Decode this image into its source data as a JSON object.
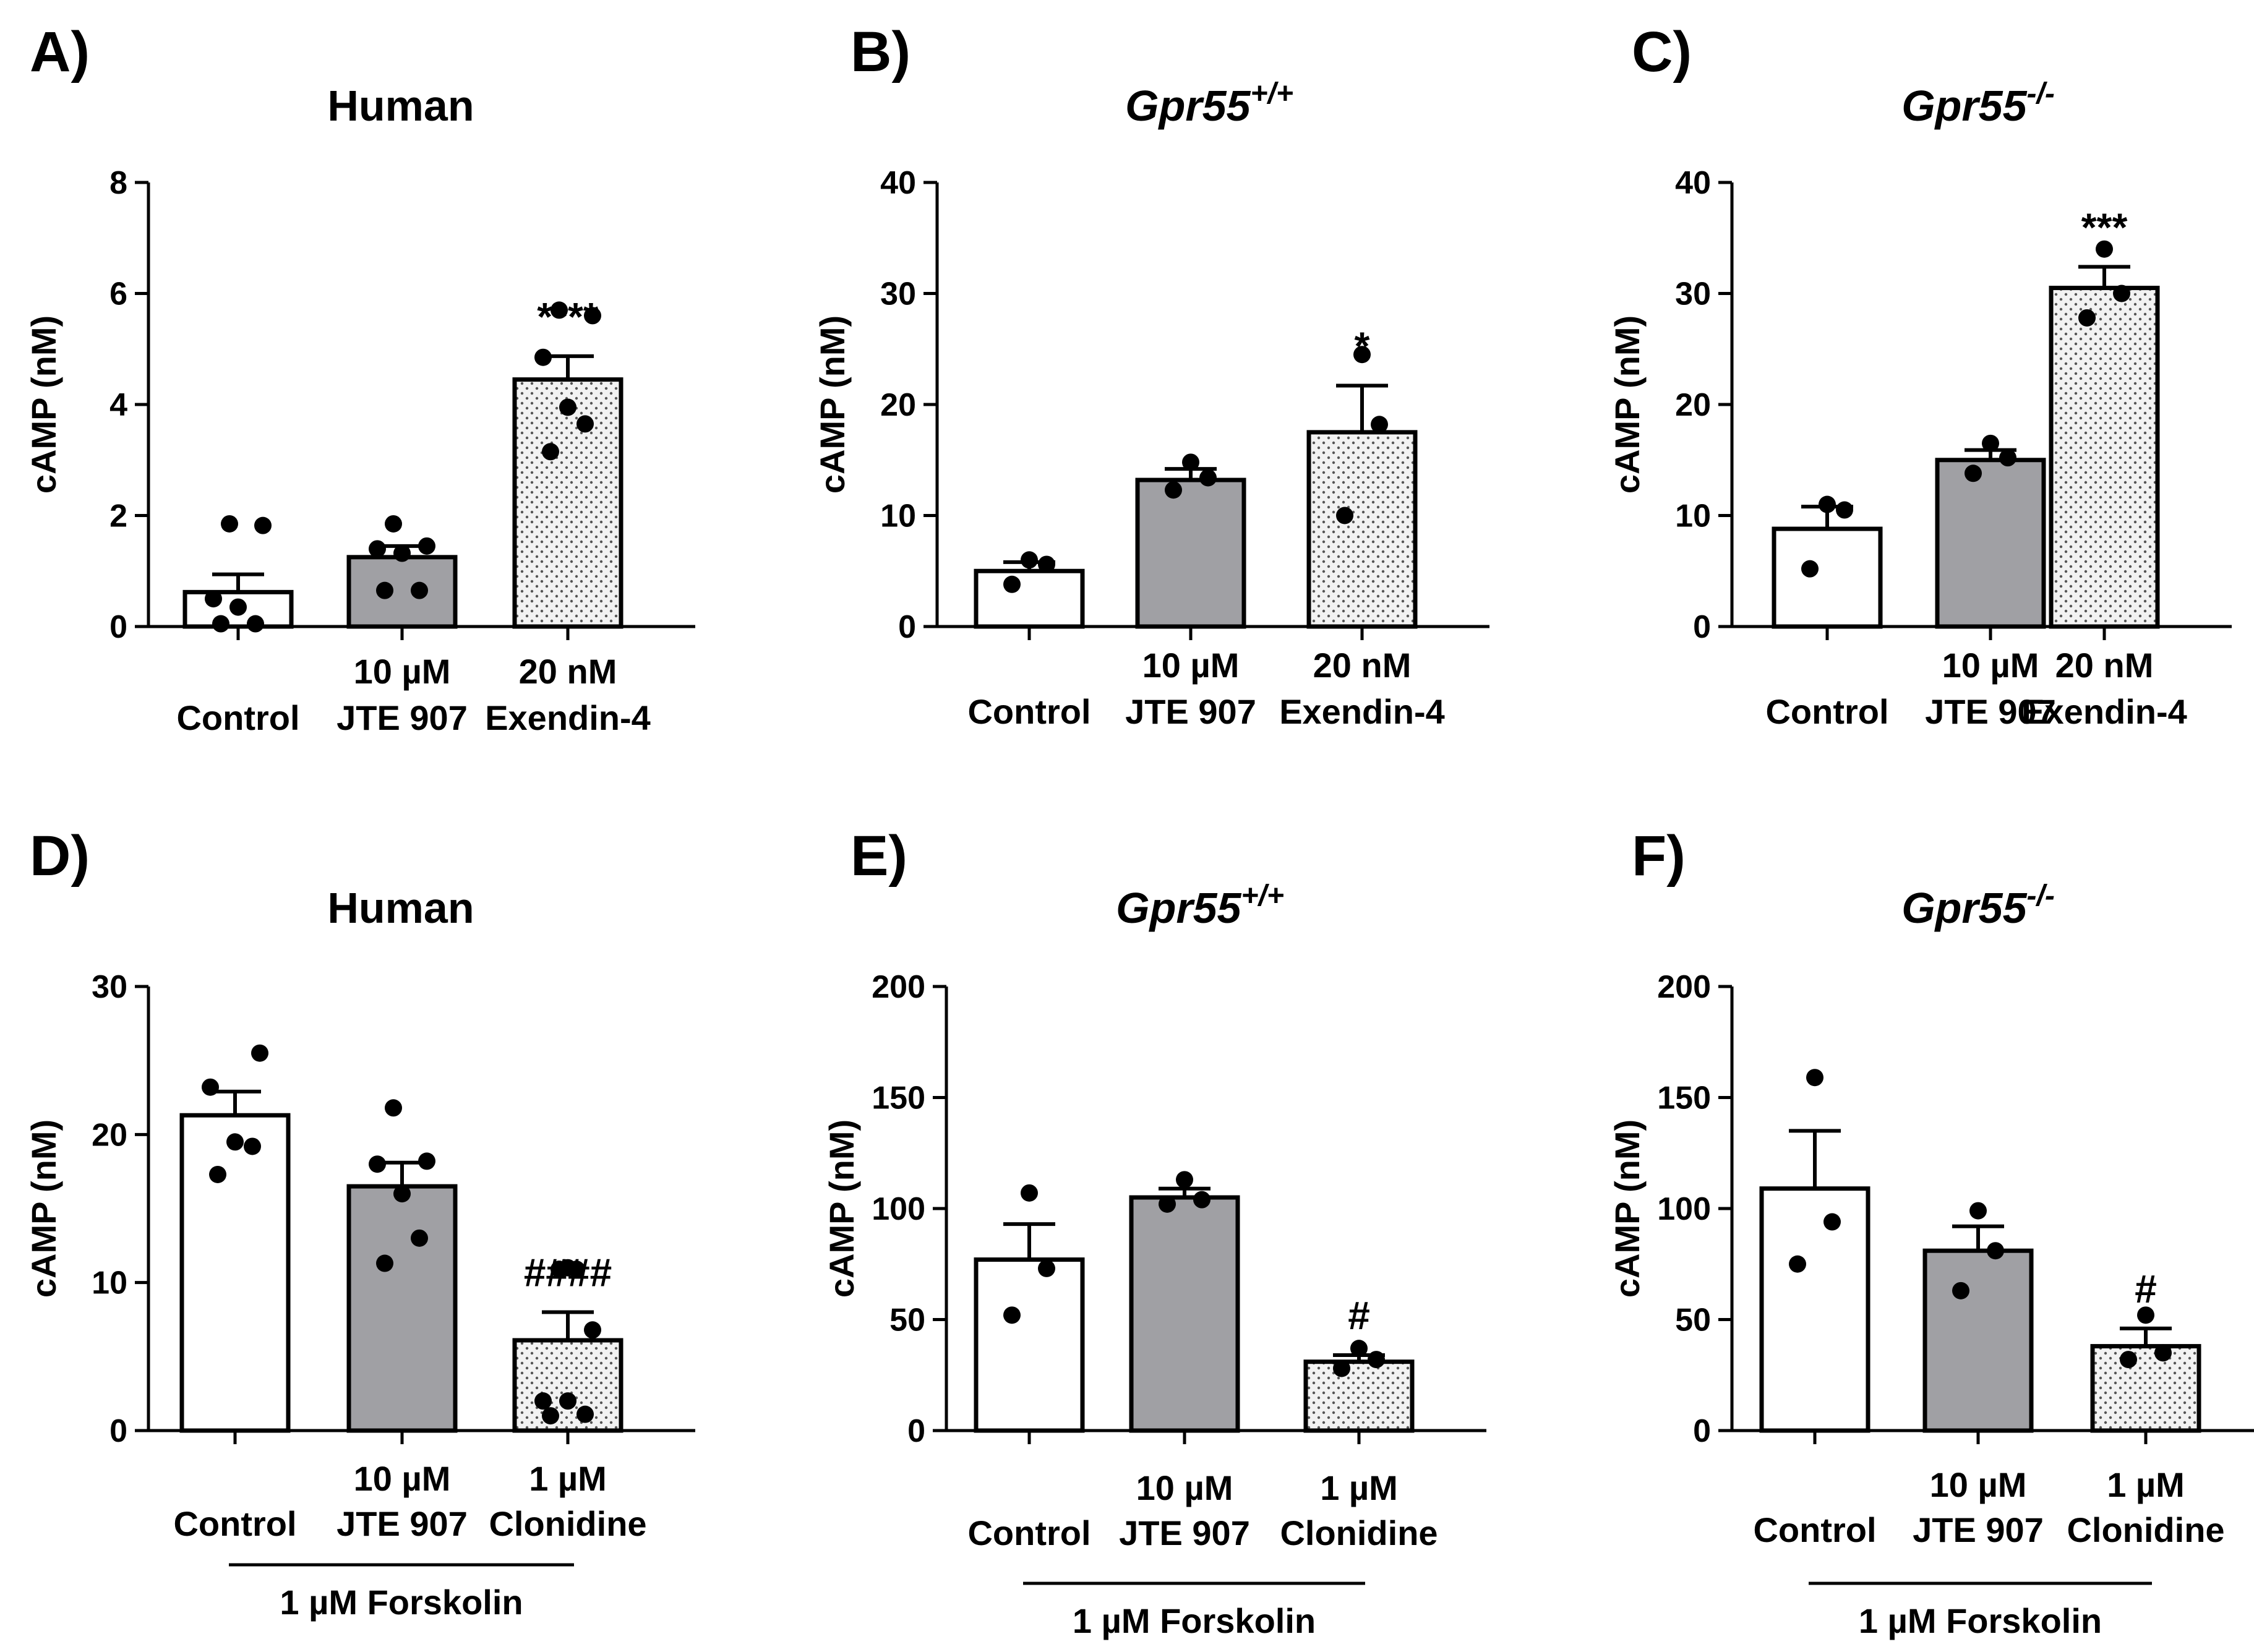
{
  "colors": {
    "control": "#ffffff",
    "jte": "#a0a0a4",
    "treat": "#f2f2f2",
    "stroke": "#000000",
    "stipple": "#555555"
  },
  "chart_data": [
    {
      "type": "bar",
      "panel": "A)",
      "title": "Human",
      "title_italic": false,
      "title_sup": "",
      "ylabel": "cAMP (nM)",
      "ylim": [
        0,
        8
      ],
      "yticks": [
        0,
        2,
        4,
        6,
        8
      ],
      "categories": [
        [
          "Control"
        ],
        [
          "10 µM",
          "JTE 907"
        ],
        [
          "20 nM",
          "Exendin-4"
        ]
      ],
      "values": [
        0.62,
        1.25,
        4.45
      ],
      "sem": [
        0.32,
        0.2,
        0.42
      ],
      "points": [
        [
          0.05,
          0.05,
          0.35,
          0.5,
          1.82,
          1.85
        ],
        [
          0.65,
          0.65,
          1.32,
          1.4,
          1.45,
          1.85
        ],
        [
          3.15,
          3.65,
          3.95,
          4.85,
          5.6,
          5.7
        ]
      ],
      "annotations": [
        "",
        "",
        "****"
      ],
      "bracket_label": ""
    },
    {
      "type": "bar",
      "panel": "B)",
      "title": "Gpr55",
      "title_italic": true,
      "title_sup": "+/+",
      "ylabel": "cAMP (nM)",
      "ylim": [
        0,
        40
      ],
      "yticks": [
        0,
        10,
        20,
        30,
        40
      ],
      "categories": [
        [
          "Control"
        ],
        [
          "10 µM",
          "JTE 907"
        ],
        [
          "20 nM",
          "Exendin-4"
        ]
      ],
      "values": [
        5.0,
        13.2,
        17.5
      ],
      "sem": [
        0.8,
        1.0,
        4.2
      ],
      "points": [
        [
          3.8,
          5.6,
          6.0
        ],
        [
          12.3,
          13.4,
          14.8
        ],
        [
          10.0,
          18.2,
          24.5
        ]
      ],
      "annotations": [
        "",
        "",
        "*"
      ],
      "bracket_label": ""
    },
    {
      "type": "bar",
      "panel": "C)",
      "title": "Gpr55",
      "title_italic": true,
      "title_sup": "-/-",
      "ylabel": "cAMP (nM)",
      "ylim": [
        0,
        40
      ],
      "yticks": [
        0,
        10,
        20,
        30,
        40
      ],
      "categories": [
        [
          "Control"
        ],
        [
          "10 µM",
          "JTE 907"
        ],
        [
          "20 nM",
          "Exendin-4"
        ]
      ],
      "values": [
        8.8,
        15.0,
        30.5
      ],
      "sem": [
        2.0,
        0.9,
        1.9
      ],
      "points": [
        [
          5.2,
          10.5,
          11.0
        ],
        [
          13.8,
          15.2,
          16.5
        ],
        [
          27.8,
          30.0,
          34.0
        ]
      ],
      "annotations": [
        "",
        "",
        "***"
      ],
      "bracket_label": ""
    },
    {
      "type": "bar",
      "panel": "D)",
      "title": "Human",
      "title_italic": false,
      "title_sup": "",
      "ylabel": "cAMP (nM)",
      "ylim": [
        0,
        30
      ],
      "yticks": [
        0,
        10,
        20,
        30
      ],
      "categories": [
        [
          "Control"
        ],
        [
          "10 µM",
          "JTE 907"
        ],
        [
          "1 µM",
          "Clonidine"
        ]
      ],
      "values": [
        21.3,
        16.5,
        6.1
      ],
      "sem": [
        1.6,
        1.6,
        1.9
      ],
      "points": [
        [
          17.3,
          19.2,
          19.5,
          23.2,
          25.5
        ],
        [
          11.3,
          13.0,
          16.0,
          18.0,
          18.2,
          21.8
        ],
        [
          1.0,
          1.1,
          2.0,
          2.0,
          6.8,
          10.9,
          10.9,
          11.0
        ]
      ],
      "annotations": [
        "",
        "",
        "####"
      ],
      "bracket_label": "1 µM Forskolin"
    },
    {
      "type": "bar",
      "panel": "E)",
      "title": "Gpr55",
      "title_italic": true,
      "title_sup": "+/+",
      "ylabel": "cAMP (nM)",
      "ylim": [
        0,
        200
      ],
      "yticks": [
        0,
        50,
        100,
        150,
        200
      ],
      "categories": [
        [
          "Control"
        ],
        [
          "10 µM",
          "JTE 907"
        ],
        [
          "1 µM",
          "Clonidine"
        ]
      ],
      "values": [
        77,
        105,
        31
      ],
      "sem": [
        16,
        4,
        3
      ],
      "points": [
        [
          52,
          73,
          107
        ],
        [
          102,
          104,
          113
        ],
        [
          28,
          32,
          37
        ]
      ],
      "annotations": [
        "",
        "",
        "#"
      ],
      "bracket_label": "1 µM Forskolin"
    },
    {
      "type": "bar",
      "panel": "F)",
      "title": "Gpr55",
      "title_italic": true,
      "title_sup": "-/-",
      "ylabel": "cAMP (nM)",
      "ylim": [
        0,
        200
      ],
      "yticks": [
        0,
        50,
        100,
        150,
        200
      ],
      "categories": [
        [
          "Control"
        ],
        [
          "10 µM",
          "JTE 907"
        ],
        [
          "1 µM",
          "Clonidine"
        ]
      ],
      "values": [
        109,
        81,
        38
      ],
      "sem": [
        26,
        11,
        8
      ],
      "points": [
        [
          75,
          94,
          159
        ],
        [
          63,
          81,
          99
        ],
        [
          32,
          35,
          52
        ]
      ],
      "annotations": [
        "",
        "",
        "#"
      ],
      "bracket_label": "1 µM Forskolin"
    }
  ]
}
